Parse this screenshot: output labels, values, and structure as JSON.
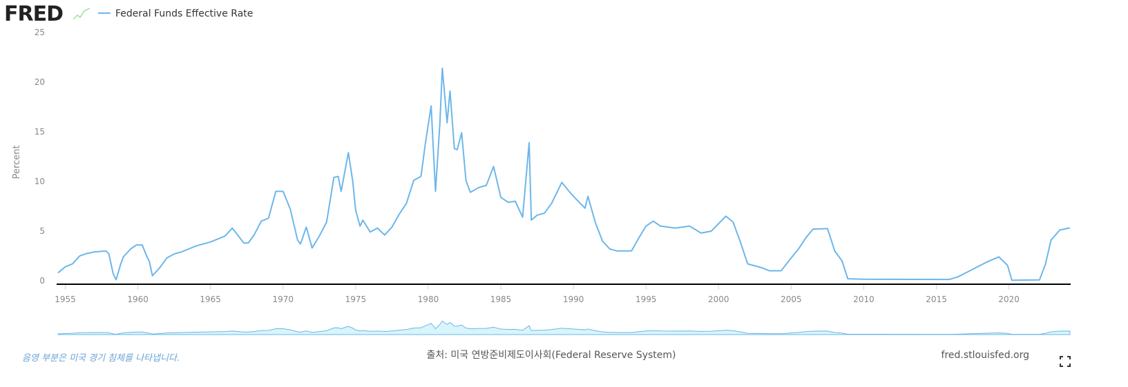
{
  "header": {
    "logo": "FRED"
  },
  "chart_data": {
    "type": "line",
    "y_label": "Percent",
    "x": [
      1954.5,
      1955.0,
      1955.5,
      1956.0,
      1956.5,
      1957.0,
      1957.8,
      1958.0,
      1958.3,
      1958.5,
      1958.8,
      1959.0,
      1959.5,
      1959.9,
      1960.3,
      1960.6,
      1960.8,
      1961.0,
      1961.5,
      1962.0,
      1962.5,
      1963.0,
      1963.5,
      1964.0,
      1965.0,
      1966.0,
      1966.5,
      1967.3,
      1967.6,
      1968.0,
      1968.5,
      1969.0,
      1969.5,
      1970.0,
      1970.5,
      1971.0,
      1971.2,
      1971.6,
      1972.0,
      1972.5,
      1973.0,
      1973.5,
      1973.8,
      1974.0,
      1974.5,
      1974.8,
      1975.0,
      1975.3,
      1975.5,
      1976.0,
      1976.5,
      1977.0,
      1977.5,
      1978.0,
      1978.5,
      1979.0,
      1979.5,
      1979.8,
      1980.2,
      1980.5,
      1980.8,
      1980.97,
      1981.3,
      1981.5,
      1981.8,
      1982.0,
      1982.3,
      1982.6,
      1982.9,
      1983.5,
      1984.0,
      1984.5,
      1985.0,
      1985.5,
      1986.0,
      1986.5,
      1986.95,
      1987.1,
      1987.5,
      1988.0,
      1988.5,
      1989.2,
      1989.7,
      1990.2,
      1990.8,
      1991.0,
      1991.5,
      1992.0,
      1992.5,
      1993.0,
      1994.0,
      1994.5,
      1995.0,
      1995.5,
      1996.0,
      1997.0,
      1998.0,
      1998.8,
      1999.5,
      2000.5,
      2001.0,
      2001.5,
      2002.0,
      2003.0,
      2003.5,
      2004.3,
      2005.0,
      2005.5,
      2006.0,
      2006.5,
      2007.5,
      2008.0,
      2008.5,
      2008.9,
      2010.0,
      2015.9,
      2016.5,
      2017.5,
      2018.5,
      2019.3,
      2019.9,
      2020.2,
      2022.1,
      2022.5,
      2022.9,
      2023.5,
      2024.2
    ],
    "series": [
      {
        "name": "Federal Funds Effective Rate",
        "color": "#6cb6ea",
        "values": [
          0.8,
          1.4,
          1.7,
          2.5,
          2.75,
          2.9,
          3.0,
          2.7,
          0.7,
          0.1,
          1.6,
          2.4,
          3.2,
          3.6,
          3.6,
          2.5,
          1.9,
          0.5,
          1.3,
          2.3,
          2.7,
          2.9,
          3.2,
          3.5,
          3.9,
          4.5,
          5.3,
          3.8,
          3.8,
          4.6,
          6.0,
          6.3,
          9.0,
          9.0,
          7.2,
          4.1,
          3.7,
          5.4,
          3.3,
          4.5,
          5.9,
          10.4,
          10.5,
          9.0,
          12.9,
          10.0,
          7.1,
          5.5,
          6.1,
          4.9,
          5.3,
          4.6,
          5.4,
          6.7,
          7.8,
          10.1,
          10.5,
          13.8,
          17.6,
          9.0,
          15.8,
          21.4,
          15.9,
          19.1,
          13.3,
          13.2,
          14.9,
          10.1,
          8.9,
          9.4,
          9.6,
          11.5,
          8.4,
          7.9,
          8.0,
          6.4,
          13.9,
          6.1,
          6.6,
          6.8,
          7.8,
          9.9,
          9.0,
          8.2,
          7.3,
          8.5,
          5.9,
          4.0,
          3.2,
          3.0,
          3.0,
          4.3,
          5.5,
          6.0,
          5.5,
          5.3,
          5.5,
          4.8,
          5.0,
          6.5,
          5.9,
          3.9,
          1.7,
          1.3,
          1.0,
          1.0,
          2.3,
          3.2,
          4.3,
          5.2,
          5.25,
          3.0,
          2.0,
          0.2,
          0.15,
          0.13,
          0.4,
          1.15,
          1.9,
          2.4,
          1.55,
          0.05,
          0.08,
          1.6,
          4.1,
          5.1,
          5.33
        ]
      }
    ],
    "xlim": [
      1954.5,
      2024.25
    ],
    "xticks": [
      1955,
      1960,
      1965,
      1970,
      1975,
      1980,
      1985,
      1990,
      1995,
      2000,
      2005,
      2010,
      2015,
      2020
    ],
    "ylim": [
      -0.35,
      25
    ],
    "yticks": [
      0,
      5,
      10,
      15,
      20,
      25
    ],
    "navigator_color": "#bdeef7"
  },
  "footer": {
    "note": "음영 부분은 미국 경기 침체를 나타냅니다.",
    "source": "출처: 미국 연방준비제도이사회(Federal Reserve System)",
    "site": "fred.stlouisfed.org"
  }
}
